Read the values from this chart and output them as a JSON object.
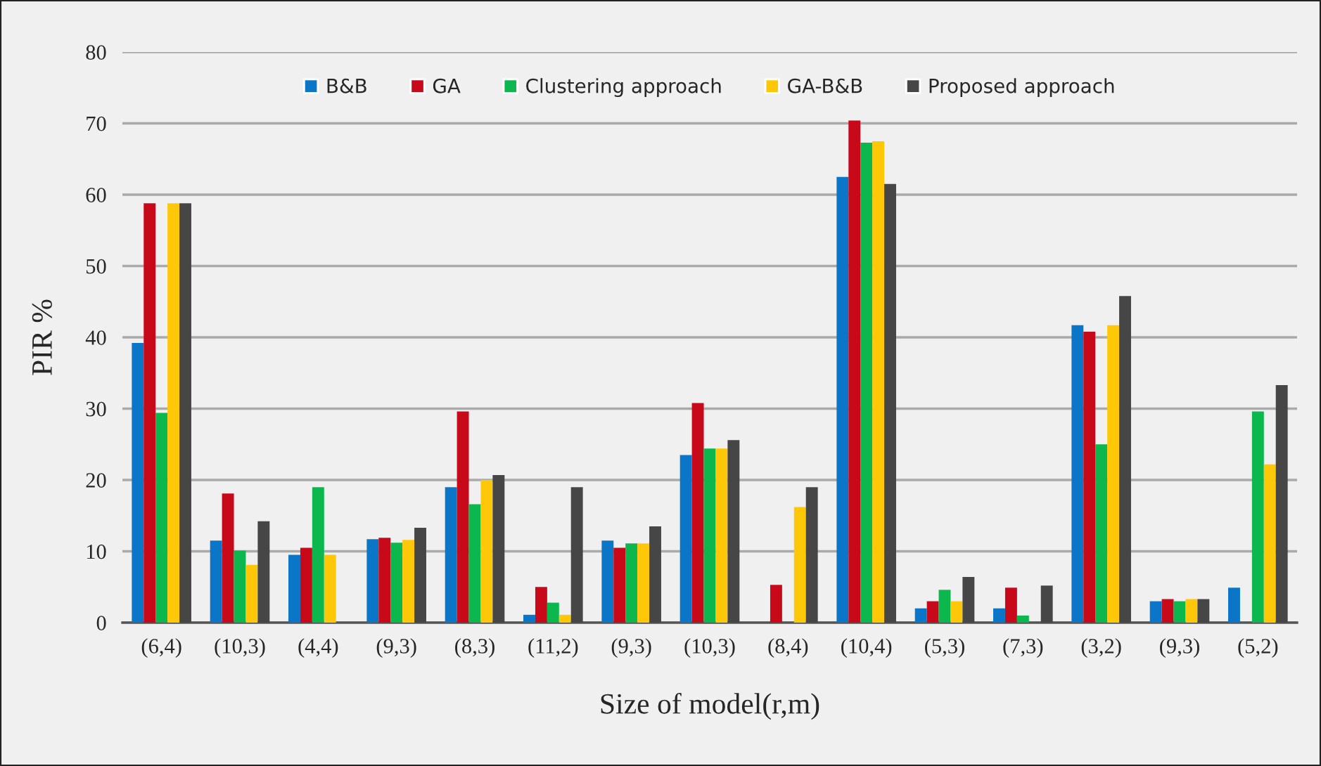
{
  "chart_data": {
    "type": "bar",
    "xlabel": "Size of model(r,m)",
    "ylabel": "PIR %",
    "categories": [
      "(6,4)",
      "(10,3)",
      "(4,4)",
      "(9,3)",
      "(8,3)",
      "(11,2)",
      "(9,3)",
      "(10,3)",
      "(8,4)",
      "(10,4)",
      "(5,3)",
      "(7,3)",
      "(3,2)",
      "(9,3)",
      "(5,2)"
    ],
    "series": [
      {
        "name": "B&B",
        "color": "#0b76c8",
        "values": [
          39.2,
          11.5,
          9.5,
          11.7,
          19,
          1.1,
          11.5,
          23.5,
          0,
          62.5,
          2,
          2,
          41.7,
          3,
          4.9
        ]
      },
      {
        "name": "GA",
        "color": "#c8091a",
        "values": [
          58.8,
          18.1,
          10.5,
          11.9,
          29.6,
          5,
          10.5,
          30.8,
          5.3,
          70.4,
          3,
          4.9,
          40.8,
          3.3,
          0
        ]
      },
      {
        "name": "Clustering approach",
        "color": "#0cb84e",
        "values": [
          29.4,
          10.1,
          19,
          11.2,
          16.6,
          2.8,
          11.1,
          24.4,
          0,
          67.3,
          4.6,
          1,
          25,
          3,
          29.6
        ]
      },
      {
        "name": "GA-B&B",
        "color": "#fec808",
        "values": [
          58.8,
          8.1,
          9.5,
          11.6,
          20,
          1.1,
          11.1,
          24.4,
          16.2,
          67.5,
          3,
          0,
          41.7,
          3.3,
          22.2
        ]
      },
      {
        "name": "Proposed approach",
        "color": "#464646",
        "values": [
          58.8,
          14.2,
          0,
          13.3,
          20.7,
          19,
          13.5,
          25.6,
          19,
          61.5,
          6.4,
          5.2,
          45.8,
          3.3,
          33.3
        ]
      }
    ],
    "ylim": [
      0,
      80
    ],
    "yticks": [
      0,
      10,
      20,
      30,
      40,
      50,
      60,
      70,
      80
    ],
    "grid": "y",
    "legend": "top"
  }
}
